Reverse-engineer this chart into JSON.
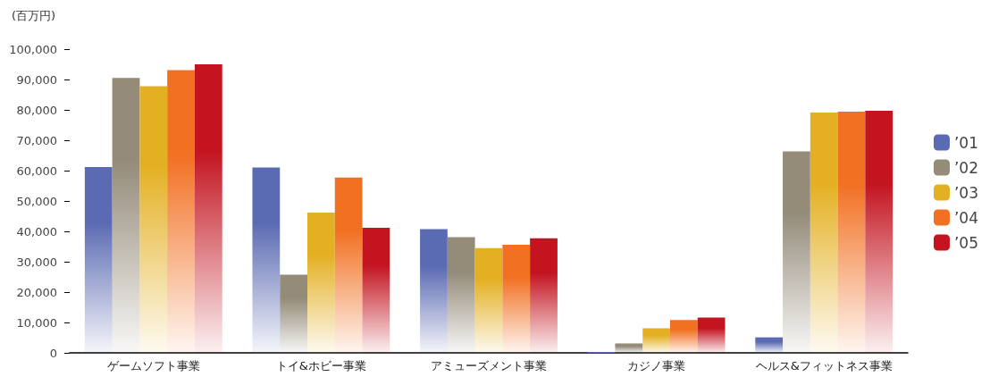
{
  "chart_data": {
    "type": "bar",
    "ylabel": "(百万円)",
    "categories": [
      "ゲームソフト事業",
      "トイ&ホビー事業",
      "アミューズメント事業",
      "カジノ事業",
      "ヘルス&フィットネス事業"
    ],
    "series": [
      {
        "name": "’01",
        "color": "#5b6bb3",
        "values": [
          61200,
          61000,
          40700,
          300,
          5100
        ]
      },
      {
        "name": "’02",
        "color": "#948b79",
        "values": [
          90500,
          25700,
          38100,
          3100,
          66300
        ]
      },
      {
        "name": "’03",
        "color": "#e4b023",
        "values": [
          87800,
          46200,
          34500,
          8100,
          79100
        ]
      },
      {
        "name": "’04",
        "color": "#f27022",
        "values": [
          93100,
          57700,
          35600,
          10800,
          79400
        ]
      },
      {
        "name": "’05",
        "color": "#c31420",
        "values": [
          95000,
          41200,
          37700,
          11600,
          79700
        ]
      }
    ],
    "ylim": [
      0,
      100000
    ],
    "yticks": [
      0,
      {
        "value": 10000,
        "label": "10,000"
      },
      {
        "value": 20000,
        "label": "20,000"
      },
      {
        "value": 30000,
        "label": "30,000"
      },
      {
        "value": 40000,
        "label": "40,000"
      },
      {
        "value": 50000,
        "label": "50,000"
      },
      {
        "value": 60000,
        "label": "60,000"
      },
      {
        "value": 70000,
        "label": "70,000"
      },
      {
        "value": 80000,
        "label": "80,000"
      },
      {
        "value": 90000,
        "label": "90,000"
      },
      {
        "value": 100000,
        "label": "100,000"
      }
    ],
    "grid": false,
    "legend": "right"
  }
}
